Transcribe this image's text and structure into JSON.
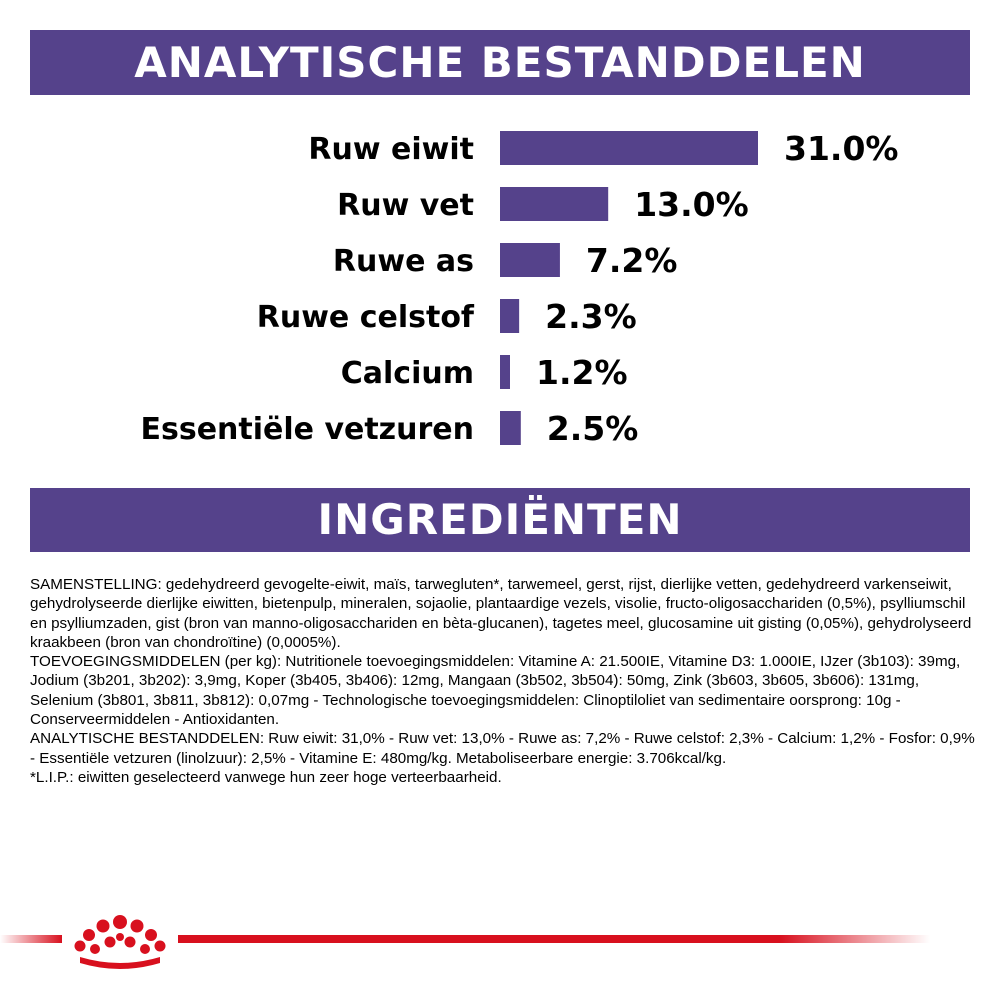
{
  "colors": {
    "accent": "#55428b",
    "brand_red": "#d8101e",
    "text": "#000000"
  },
  "header": {
    "title": "ANALYTISCHE BESTANDDELEN"
  },
  "chart_data": {
    "type": "bar",
    "orientation": "horizontal",
    "title": "ANALYTISCHE BESTANDDELEN",
    "categories": [
      "Ruw eiwit",
      "Ruw vet",
      "Ruwe as",
      "Ruwe celstof",
      "Calcium",
      "Essentiële vetzuren"
    ],
    "values": [
      31.0,
      13.0,
      7.2,
      2.3,
      1.2,
      2.5
    ],
    "value_labels": [
      "31.0%",
      "13.0%",
      "7.2%",
      "2.3%",
      "1.2%",
      "2.5%"
    ],
    "xlim": [
      0,
      31.0
    ],
    "grid": false,
    "legend": "none"
  },
  "ingredients": {
    "title": "INGREDIËNTEN",
    "paragraphs": [
      "SAMENSTELLING: gedehydreerd gevogelte-eiwit, maïs, tarwegluten*, tarwemeel, gerst, rijst, dierlijke vetten, gedehydreerd varkenseiwit, gehydrolyseerde dierlijke eiwitten, bietenpulp, mineralen, sojaolie, plantaardige vezels, visolie, fructo-oligosacchariden (0,5%), psylliumschil en psylliumzaden, gist (bron van manno-oligosacchariden en bèta-glucanen), tagetes meel, glucosamine uit gisting (0,05%), gehydrolyseerd kraakbeen (bron van chondroïtine) (0,0005%).",
      "TOEVOEGINGSMIDDELEN (per kg): Nutritionele toevoegingsmiddelen: Vitamine A: 21.500IE, Vitamine D3: 1.000IE, IJzer (3b103): 39mg, Jodium (3b201, 3b202): 3,9mg, Koper (3b405, 3b406): 12mg, Mangaan (3b502, 3b504): 50mg, Zink (3b603, 3b605, 3b606): 131mg, Selenium (3b801, 3b811, 3b812): 0,07mg - Technologische toevoegingsmiddelen: Clinoptiloliet van sedimentaire oorsprong: 10g - Conserveermiddelen - Antioxidanten.",
      "ANALYTISCHE BESTANDDELEN: Ruw eiwit: 31,0% - Ruw vet: 13,0% - Ruwe as: 7,2% - Ruwe celstof: 2,3% - Calcium: 1,2% - Fosfor: 0,9% - Essentiële vetzuren (linolzuur): 2,5% - Vitamine E: 480mg/kg. Metaboliseerbare energie: 3.706kcal/kg.",
      "*L.I.P.: eiwitten geselecteerd vanwege hun zeer hoge verteerbaarheid."
    ]
  },
  "footer": {
    "logo_icon": "crown-icon"
  }
}
